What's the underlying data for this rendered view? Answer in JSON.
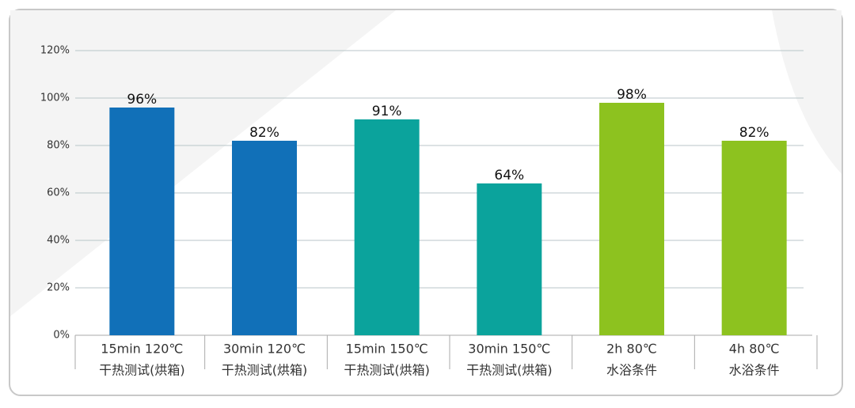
{
  "chart_data": {
    "type": "bar",
    "categories": [
      [
        "15min 120℃",
        "干热测试(烘箱)"
      ],
      [
        "30min 120℃",
        "干热测试(烘箱)"
      ],
      [
        "15min 150℃",
        "干热测试(烘箱)"
      ],
      [
        "30min 150℃",
        "干热测试(烘箱)"
      ],
      [
        "2h 80℃",
        "水浴条件"
      ],
      [
        "4h 80℃",
        "水浴条件"
      ]
    ],
    "values": [
      96,
      82,
      91,
      64,
      98,
      82
    ],
    "value_labels": [
      "96%",
      "82%",
      "91%",
      "64%",
      "98%",
      "82%"
    ],
    "colors": [
      "#1170b8",
      "#1170b8",
      "#0ba39c",
      "#0ba39c",
      "#8dc21f",
      "#8dc21f"
    ],
    "ylim": [
      0,
      120
    ],
    "yticks": [
      {
        "value": 0,
        "label": "0%"
      },
      {
        "value": 20,
        "label": "20%"
      },
      {
        "value": 40,
        "label": "40%"
      },
      {
        "value": 60,
        "label": "60%"
      },
      {
        "value": 80,
        "label": "80%"
      },
      {
        "value": 100,
        "label": "100%"
      },
      {
        "value": 120,
        "label": "120%"
      }
    ],
    "grid": true
  }
}
